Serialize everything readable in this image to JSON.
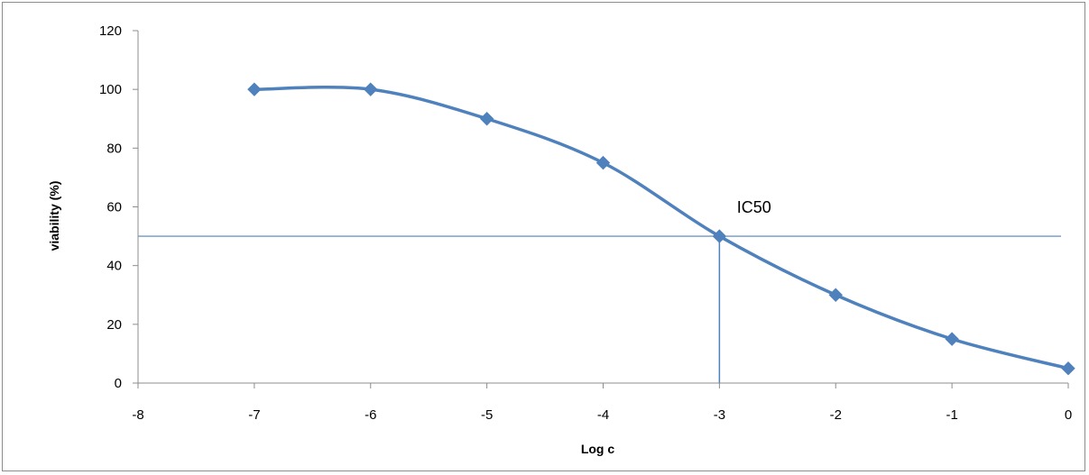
{
  "chart_data": {
    "type": "line",
    "title": "",
    "xlabel": "Log c",
    "ylabel": "viability (%)",
    "xlim": [
      -8,
      0
    ],
    "ylim": [
      0,
      120
    ],
    "x_ticks": [
      "-8",
      "-7",
      "-6",
      "-5",
      "-4",
      "-3",
      "-2",
      "-1",
      "0"
    ],
    "y_ticks": [
      "0",
      "20",
      "40",
      "60",
      "80",
      "100",
      "120"
    ],
    "grid": false,
    "legend": "none",
    "series": [
      {
        "color": "#4f81bd",
        "marker": "diamond",
        "smooth": true,
        "x": [
          -7,
          -6,
          -5,
          -4,
          -3,
          -2,
          -1,
          0
        ],
        "y": [
          100,
          100,
          90,
          75,
          50,
          30,
          15,
          5
        ]
      }
    ],
    "reference_lines": {
      "horizontal_y": 50,
      "vertical_x": -3,
      "color": "#4f81bd"
    },
    "annotation": {
      "text": "IC50",
      "x": -2.85,
      "y": 58
    }
  }
}
